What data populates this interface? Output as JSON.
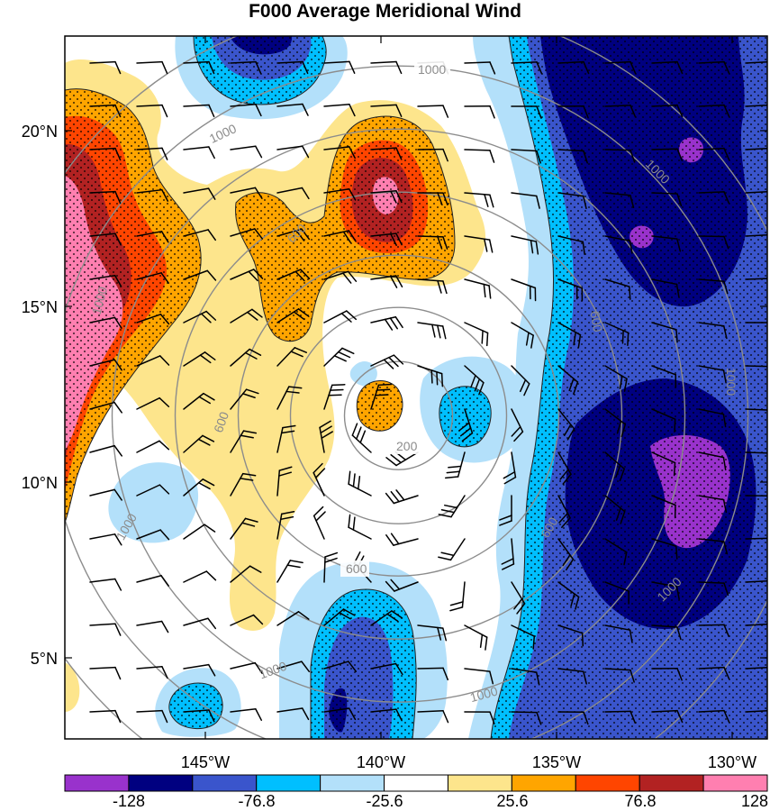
{
  "title": "F000 Average Meridional Wind",
  "lat_labels": [
    "20°N",
    "15°N",
    "10°N",
    "5°N"
  ],
  "lon_labels": [
    "145°W",
    "140°W",
    "135°W",
    "130°W"
  ],
  "colorbar": {
    "labels": [
      "-128",
      "-76.8",
      "-25.6",
      "25.6",
      "76.8",
      "128"
    ],
    "colors": [
      "#9932cc",
      "#000080",
      "#3a55cc",
      "#00bfff",
      "#b3e0fa",
      "#ffffff",
      "#fde58c",
      "#ffa500",
      "#ff4500",
      "#b22222",
      "#ff7fb0"
    ]
  },
  "chart_data": {
    "type": "heatmap",
    "title": "F000 Average Meridional Wind",
    "x_ticks": [
      "145°W",
      "140°W",
      "135°W",
      "130°W"
    ],
    "y_ticks": [
      "20°N",
      "15°N",
      "10°N",
      "5°N"
    ],
    "lon_range": [
      -149,
      -129
    ],
    "lat_range": [
      3,
      23
    ],
    "levels": [
      -153.6,
      -128,
      -102.4,
      -76.8,
      -51.2,
      -25.6,
      25.6,
      51.2,
      76.8,
      102.4,
      128,
      153.6
    ],
    "colorbar_labels": [
      "-128",
      "-76.8",
      "-25.6",
      "25.6",
      "76.8",
      "128"
    ],
    "range_rings": {
      "center_lon": -139.5,
      "center_lat": 12.2,
      "labels": [
        "200",
        "600",
        "1000"
      ]
    }
  }
}
